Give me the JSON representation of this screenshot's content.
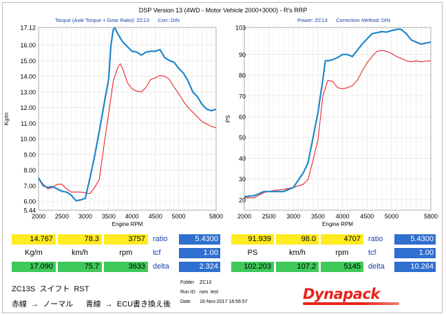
{
  "header": {
    "title": "DSP Version 13 (4WD - Motor Vehicle 2000+3000) - R's  RRP"
  },
  "left_chart": {
    "subtitle": "Torque (Axle Torque + Gear Ratio): ZC13      Corr: DIN",
    "ylabel": "Kg/m",
    "xlabel": "Engine RPM"
  },
  "right_chart": {
    "subtitle": "Power: ZC13      Correction Method: DIN",
    "ylabel": "PS",
    "xlabel": "Engine RPM"
  },
  "colors": {
    "series_red": "#e8232b",
    "series_blue": "#1f86c8",
    "grid": "#e6e6e6"
  },
  "chart_data": [
    {
      "type": "line",
      "title": "Torque (Axle Torque + Gear Ratio): ZC13      Corr: DIN",
      "xlabel": "Engine RPM",
      "ylabel": "Kg/m",
      "xlim": [
        2000,
        5800
      ],
      "ylim": [
        5.44,
        17.12
      ],
      "xticks": [
        "2000",
        "2500",
        "3000",
        "3500",
        "4000",
        "4500",
        "5000",
        "5800"
      ],
      "yticks": [
        {
          "v": 17.12,
          "t": "17.12"
        },
        {
          "v": 16.0,
          "t": "16.00"
        },
        {
          "v": 15.0,
          "t": "15.00"
        },
        {
          "v": 14.0,
          "t": "14.00"
        },
        {
          "v": 13.0,
          "t": "13.00"
        },
        {
          "v": 12.0,
          "t": "12.00"
        },
        {
          "v": 11.0,
          "t": "11.00"
        },
        {
          "v": 10.0,
          "t": "10.00"
        },
        {
          "v": 9.0,
          "t": "9.00"
        },
        {
          "v": 8.0,
          "t": "8.00"
        },
        {
          "v": 7.0,
          "t": "7.00"
        },
        {
          "v": 6.0,
          "t": "6.00"
        },
        {
          "v": 5.44,
          "t": "5.44"
        }
      ],
      "grid": true,
      "series": [
        {
          "color": "#e8232b",
          "points": [
            [
              2000,
              7.5
            ],
            [
              2100,
              7.1
            ],
            [
              2200,
              6.8
            ],
            [
              2300,
              6.9
            ],
            [
              2400,
              7.1
            ],
            [
              2500,
              7.1
            ],
            [
              2600,
              6.8
            ],
            [
              2700,
              6.6
            ],
            [
              2800,
              6.6
            ],
            [
              2900,
              6.6
            ],
            [
              3000,
              6.55
            ],
            [
              3100,
              6.5
            ],
            [
              3200,
              6.9
            ],
            [
              3300,
              7.4
            ],
            [
              3400,
              9.6
            ],
            [
              3500,
              11.6
            ],
            [
              3600,
              13.7
            ],
            [
              3700,
              14.6
            ],
            [
              3750,
              14.8
            ],
            [
              3800,
              14.5
            ],
            [
              3900,
              13.6
            ],
            [
              4000,
              13.2
            ],
            [
              4100,
              13.05
            ],
            [
              4200,
              13.0
            ],
            [
              4300,
              13.3
            ],
            [
              4400,
              13.8
            ],
            [
              4500,
              13.9
            ],
            [
              4600,
              14.05
            ],
            [
              4700,
              14.0
            ],
            [
              4800,
              13.8
            ],
            [
              4900,
              13.3
            ],
            [
              5000,
              12.9
            ],
            [
              5100,
              12.4
            ],
            [
              5200,
              12.0
            ],
            [
              5300,
              11.7
            ],
            [
              5400,
              11.4
            ],
            [
              5500,
              11.1
            ],
            [
              5600,
              10.95
            ],
            [
              5700,
              10.8
            ],
            [
              5800,
              10.7
            ]
          ]
        },
        {
          "color": "#1f86c8",
          "points": [
            [
              2000,
              7.5
            ],
            [
              2100,
              7.0
            ],
            [
              2200,
              6.9
            ],
            [
              2300,
              6.95
            ],
            [
              2400,
              6.8
            ],
            [
              2500,
              6.65
            ],
            [
              2600,
              6.6
            ],
            [
              2700,
              6.4
            ],
            [
              2800,
              6.05
            ],
            [
              2900,
              6.1
            ],
            [
              3000,
              6.2
            ],
            [
              3100,
              7.5
            ],
            [
              3200,
              8.9
            ],
            [
              3300,
              10.5
            ],
            [
              3400,
              12.2
            ],
            [
              3500,
              13.8
            ],
            [
              3550,
              16.0
            ],
            [
              3600,
              17.0
            ],
            [
              3633,
              17.09
            ],
            [
              3700,
              16.7
            ],
            [
              3800,
              16.2
            ],
            [
              3900,
              15.9
            ],
            [
              4000,
              15.6
            ],
            [
              4100,
              15.55
            ],
            [
              4200,
              15.35
            ],
            [
              4300,
              15.55
            ],
            [
              4400,
              15.6
            ],
            [
              4500,
              15.6
            ],
            [
              4600,
              15.7
            ],
            [
              4700,
              15.2
            ],
            [
              4800,
              15.0
            ],
            [
              4900,
              14.9
            ],
            [
              5000,
              14.5
            ],
            [
              5100,
              14.2
            ],
            [
              5200,
              13.7
            ],
            [
              5300,
              13.0
            ],
            [
              5400,
              12.7
            ],
            [
              5500,
              12.2
            ],
            [
              5600,
              11.9
            ],
            [
              5700,
              11.8
            ],
            [
              5800,
              11.9
            ]
          ]
        }
      ]
    },
    {
      "type": "line",
      "title": "Power: ZC13      Correction Method: DIN",
      "xlabel": "Engine RPM",
      "ylabel": "PS",
      "xlim": [
        2000,
        5800
      ],
      "ylim": [
        15,
        103
      ],
      "xticks": [
        "2000",
        "2500",
        "3000",
        "3500",
        "4000",
        "4500",
        "5000",
        "5800"
      ],
      "yticks": [
        {
          "v": 103,
          "t": "103"
        },
        {
          "v": 90,
          "t": "90"
        },
        {
          "v": 80,
          "t": "80"
        },
        {
          "v": 70,
          "t": "70"
        },
        {
          "v": 60,
          "t": "60"
        },
        {
          "v": 50,
          "t": "50"
        },
        {
          "v": 40,
          "t": "40"
        },
        {
          "v": 30,
          "t": "30"
        },
        {
          "v": 20,
          "t": "20"
        }
      ],
      "grid": true,
      "series": [
        {
          "color": "#e8232b",
          "points": [
            [
              2000,
              21
            ],
            [
              2200,
              21
            ],
            [
              2400,
              23.5
            ],
            [
              2600,
              24.5
            ],
            [
              2800,
              25
            ],
            [
              3000,
              26
            ],
            [
              3200,
              27.5
            ],
            [
              3300,
              30
            ],
            [
              3400,
              39
            ],
            [
              3500,
              49
            ],
            [
              3600,
              70
            ],
            [
              3700,
              77.5
            ],
            [
              3800,
              77
            ],
            [
              3900,
              74
            ],
            [
              4000,
              73.5
            ],
            [
              4100,
              74
            ],
            [
              4200,
              75
            ],
            [
              4300,
              77.5
            ],
            [
              4400,
              82
            ],
            [
              4500,
              86
            ],
            [
              4600,
              89
            ],
            [
              4700,
              91.5
            ],
            [
              4800,
              92
            ],
            [
              4900,
              91.5
            ],
            [
              5000,
              90.5
            ],
            [
              5100,
              89
            ],
            [
              5200,
              88
            ],
            [
              5300,
              87
            ],
            [
              5400,
              86.5
            ],
            [
              5500,
              87
            ],
            [
              5600,
              86.5
            ],
            [
              5700,
              86.8
            ],
            [
              5800,
              87
            ]
          ]
        },
        {
          "color": "#1f86c8",
          "points": [
            [
              2000,
              21.5
            ],
            [
              2200,
              22
            ],
            [
              2400,
              24
            ],
            [
              2600,
              24
            ],
            [
              2800,
              24
            ],
            [
              3000,
              26
            ],
            [
              3200,
              33
            ],
            [
              3300,
              38
            ],
            [
              3400,
              50
            ],
            [
              3500,
              62
            ],
            [
              3550,
              70
            ],
            [
              3600,
              78
            ],
            [
              3650,
              87
            ],
            [
              3700,
              87
            ],
            [
              3800,
              87.5
            ],
            [
              3900,
              88.5
            ],
            [
              4000,
              90
            ],
            [
              4100,
              90
            ],
            [
              4200,
              89
            ],
            [
              4300,
              92
            ],
            [
              4400,
              95
            ],
            [
              4500,
              97.5
            ],
            [
              4600,
              100
            ],
            [
              4707,
              100.5
            ],
            [
              4800,
              101
            ],
            [
              4900,
              100.8
            ],
            [
              5000,
              101.5
            ],
            [
              5100,
              102
            ],
            [
              5145,
              102.2
            ],
            [
              5200,
              102
            ],
            [
              5300,
              100
            ],
            [
              5400,
              97
            ],
            [
              5500,
              96
            ],
            [
              5600,
              95
            ],
            [
              5700,
              95.5
            ],
            [
              5800,
              96
            ]
          ]
        }
      ]
    }
  ],
  "readouts": {
    "left": {
      "row1": {
        "kgm": "14.767",
        "kmh": "78.3",
        "rpm": "3757"
      },
      "row2": {
        "unit1": "Kg/m",
        "unit2": "km/h",
        "unit3": "rpm"
      },
      "row3": {
        "kgm": "17.090",
        "kmh": "75.7",
        "rpm": "3633"
      },
      "ratio_label": "ratio",
      "ratio_value": "5.4300",
      "tcf_label": "tcf",
      "tcf_value": "1.00",
      "delta_label": "delta",
      "delta_value": "2.324"
    },
    "right": {
      "row1": {
        "ps": "91.939",
        "kmh": "98.0",
        "rpm": "4707"
      },
      "row2": {
        "unit1": "PS",
        "unit2": "km/h",
        "unit3": "rpm"
      },
      "row3": {
        "ps": "102.203",
        "kmh": "107.2",
        "rpm": "5145"
      },
      "ratio_label": "ratio",
      "ratio_value": "5.4300",
      "tcf_label": "tcf",
      "tcf_value": "1.00",
      "delta_label": "delta",
      "delta_value": "10.264"
    }
  },
  "notes": {
    "car": "ZC13S  スイフト  RST",
    "legend_line": "赤線  →  ノーマル      青線  →  ECU書き換え後"
  },
  "info": {
    "folder_label": "Folder",
    "folder_value": "ZC13",
    "runid_label": "Run ID",
    "runid_value": "rom  test",
    "date_label": "Date",
    "date_value": "16-Nov-2017 18:56:57"
  },
  "logo": {
    "text": "Dynapack"
  }
}
